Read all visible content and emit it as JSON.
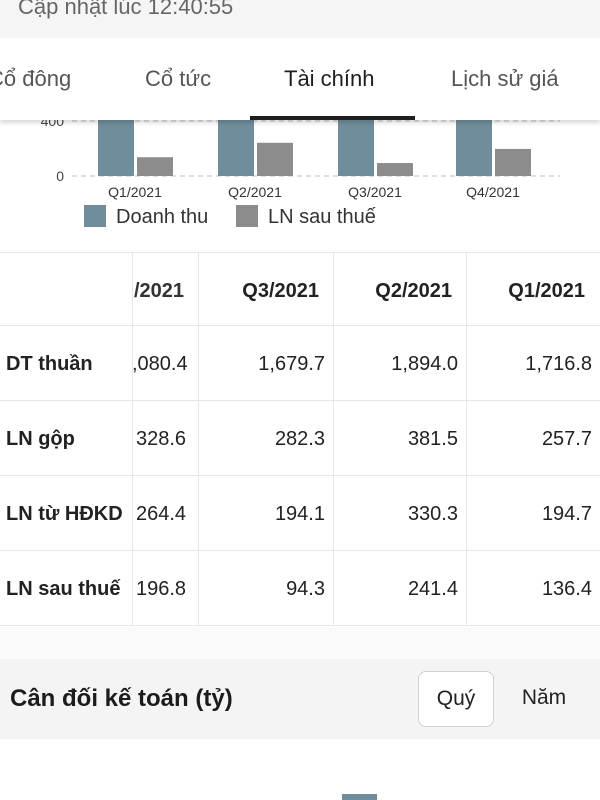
{
  "header": {
    "update_text": "Cập nhật lúc 12:40:55"
  },
  "tabs": [
    {
      "label": "Cổ đông"
    },
    {
      "label": "Cổ tức"
    },
    {
      "label": "Tài chính",
      "active": true
    },
    {
      "label": "Lịch sử giá"
    }
  ],
  "chart_data": {
    "type": "bar",
    "categories": [
      "Q1/2021",
      "Q2/2021",
      "Q3/2021",
      "Q4/2021"
    ],
    "series": [
      {
        "name": "Doanh thu",
        "color": "#6f8d9b",
        "values": [
          1716.8,
          1894.0,
          1679.7,
          2080.4
        ]
      },
      {
        "name": "LN sau thuế",
        "color": "#8c8c8c",
        "values": [
          136.4,
          241.4,
          94.3,
          196.8
        ]
      }
    ],
    "y_ticks": [
      0,
      400
    ],
    "y_tick_labels": [
      "0",
      "400"
    ],
    "grid": true,
    "legend_position": "bottom-left"
  },
  "table": {
    "headers": [
      "/2021",
      "Q3/2021",
      "Q2/2021",
      "Q1/2021"
    ],
    "rows": [
      {
        "label": "DT thuần",
        "values": [
          ",080.4",
          "1,679.7",
          "1,894.0",
          "1,716.8"
        ]
      },
      {
        "label": "LN gộp",
        "values": [
          "328.6",
          "282.3",
          "381.5",
          "257.7"
        ]
      },
      {
        "label": "LN từ HĐKD",
        "values": [
          "264.4",
          "194.1",
          "330.3",
          "194.7"
        ]
      },
      {
        "label": "LN sau thuế",
        "values": [
          "196.8",
          "94.3",
          "241.4",
          "136.4"
        ]
      }
    ]
  },
  "balance": {
    "title": "Cân đối kế toán (tỷ)",
    "quarter_label": "Quý",
    "year_label": "Năm"
  }
}
